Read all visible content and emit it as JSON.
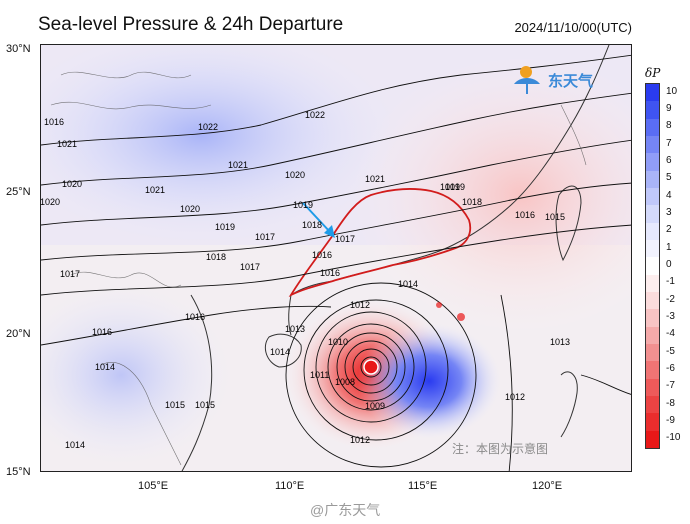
{
  "header": {
    "title": "Sea-level Pressure & 24h Departure",
    "timestamp": "2024/11/10/00(UTC)"
  },
  "axes": {
    "lat_labels": [
      "30°N",
      "25°N",
      "20°N",
      "15°N"
    ],
    "lon_labels": [
      "105°E",
      "110°E",
      "115°E",
      "120°E"
    ]
  },
  "colorbar": {
    "title": "δP",
    "labels": [
      "10",
      "9",
      "8",
      "7",
      "6",
      "5",
      "4",
      "3",
      "2",
      "1",
      "0",
      "-1",
      "-2",
      "-3",
      "-4",
      "-5",
      "-6",
      "-7",
      "-8",
      "-9",
      "-10"
    ],
    "colors": [
      "#2a3bf0",
      "#3f54f2",
      "#5a6df4",
      "#7585f5",
      "#909df7",
      "#a9b4f8",
      "#c0c8fa",
      "#d4dafb",
      "#e6e9fd",
      "#f2f3fe",
      "#ffffff",
      "#fdeeee",
      "#fbdcdc",
      "#f8c4c4",
      "#f5aaaa",
      "#f29090",
      "#f07474",
      "#ee5a5a",
      "#ec4343",
      "#ea2d2d",
      "#e81818"
    ]
  },
  "contour_labels": [
    "1022",
    "1022",
    "1021",
    "1021",
    "1020",
    "1020",
    "1019",
    "1019",
    "1018",
    "1017",
    "1016",
    "1015",
    "1014",
    "1013",
    "1012",
    "1011",
    "1010",
    "1009",
    "1008",
    "1017",
    "1016",
    "1015",
    "1014",
    "1021",
    "1020",
    "1019",
    "1018",
    "1016",
    "1016",
    "1014",
    "1013",
    "1012",
    "1015",
    "1014",
    "1012",
    "1017",
    "1016",
    "1021",
    "1020",
    "1019",
    "1018",
    "1017",
    "1016"
  ],
  "logo": {
    "text": "东天气"
  },
  "note": "注：本图为示意图",
  "watermark": "@广东天气"
}
